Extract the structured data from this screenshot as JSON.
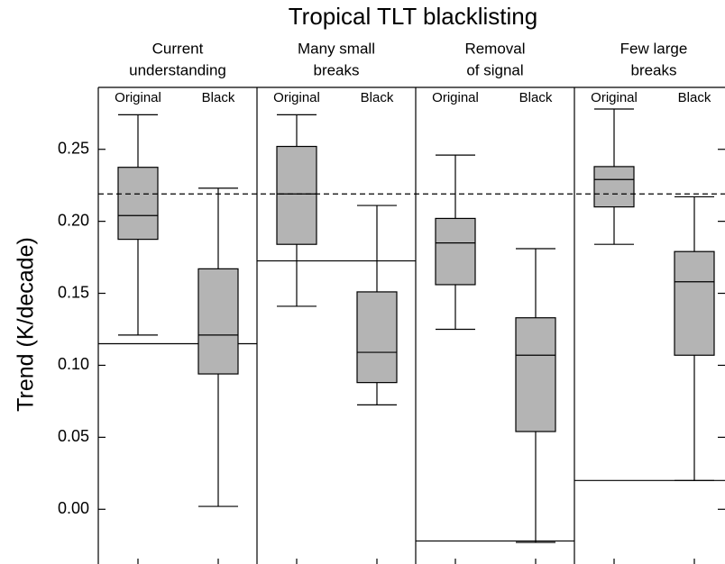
{
  "chart_data": {
    "type": "box",
    "title": "Tropical TLT blacklisting",
    "ylabel": "Trend (K/decade)",
    "ylim": [
      -0.038,
      0.293
    ],
    "yticks": [
      {
        "value": 0,
        "label": "0.00"
      },
      {
        "value": 0.05,
        "label": "0.05"
      },
      {
        "value": 0.1,
        "label": "0.10"
      },
      {
        "value": 0.15,
        "label": "0.15"
      },
      {
        "value": 0.2,
        "label": "0.20"
      },
      {
        "value": 0.25,
        "label": "0.25"
      }
    ],
    "reference_line": 0.219,
    "box_color": "#b4b4b4",
    "panels": [
      {
        "title": [
          "Current",
          "understanding"
        ],
        "level": 0.115,
        "categories": [
          "Original",
          "Black"
        ],
        "boxes": [
          {
            "whislo": 0.121,
            "q1": 0.1875,
            "med": 0.204,
            "q3": 0.2375,
            "whishi": 0.274
          },
          {
            "whislo": 0.002,
            "q1": 0.094,
            "med": 0.121,
            "q3": 0.167,
            "whishi": 0.223
          }
        ]
      },
      {
        "title": [
          "Many small",
          "breaks"
        ],
        "level": 0.1725,
        "categories": [
          "Original",
          "Black"
        ],
        "boxes": [
          {
            "whislo": 0.141,
            "q1": 0.184,
            "med": 0.219,
            "q3": 0.252,
            "whishi": 0.274
          },
          {
            "whislo": 0.0725,
            "q1": 0.088,
            "med": 0.109,
            "q3": 0.151,
            "whishi": 0.211
          }
        ]
      },
      {
        "title": [
          "Removal",
          "of signal"
        ],
        "level": -0.022,
        "categories": [
          "Original",
          "Black"
        ],
        "boxes": [
          {
            "whislo": 0.125,
            "q1": 0.156,
            "med": 0.185,
            "q3": 0.202,
            "whishi": 0.246
          },
          {
            "whislo": -0.023,
            "q1": 0.054,
            "med": 0.107,
            "q3": 0.133,
            "whishi": 0.181
          }
        ]
      },
      {
        "title": [
          "Few large",
          "breaks"
        ],
        "level": 0.02,
        "categories": [
          "Original",
          "Black"
        ],
        "boxes": [
          {
            "whislo": 0.184,
            "q1": 0.21,
            "med": 0.229,
            "q3": 0.238,
            "whishi": 0.278
          },
          {
            "whislo": 0.02,
            "q1": 0.107,
            "med": 0.158,
            "q3": 0.179,
            "whishi": 0.217
          }
        ]
      }
    ]
  }
}
